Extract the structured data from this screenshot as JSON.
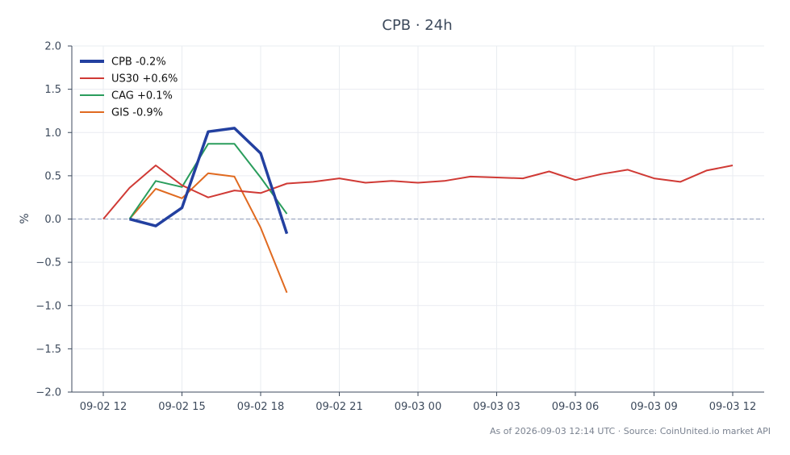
{
  "chart_data": {
    "type": "line",
    "title": "CPB · 24h",
    "xlabel": "",
    "ylabel": "%",
    "ylim": [
      -2.0,
      2.0
    ],
    "y_ticks": [
      "2.0",
      "1.5",
      "1.0",
      "0.5",
      "0.0",
      "−0.5",
      "−1.0",
      "−1.5",
      "−2.0"
    ],
    "x_ticks": [
      "09-02 12",
      "09-02 15",
      "09-02 18",
      "09-02 21",
      "09-03 00",
      "09-03 03",
      "09-03 06",
      "09-03 09",
      "09-03 12"
    ],
    "x_tick_hours": [
      0,
      3,
      6,
      9,
      12,
      15,
      18,
      21,
      24
    ],
    "grid": true,
    "zero_line": true,
    "legend_position": "top-left",
    "series": [
      {
        "name": "CPB -0.2%",
        "color": "#2340a0",
        "width": "thick",
        "x_hours": [
          1,
          2,
          3,
          4,
          5,
          6,
          7
        ],
        "values": [
          0.0,
          -0.08,
          0.13,
          1.01,
          1.05,
          0.76,
          -0.17
        ]
      },
      {
        "name": "US30 +0.6%",
        "color": "#d03a35",
        "width": "normal",
        "x_hours": [
          0,
          1,
          2,
          3,
          4,
          5,
          6,
          7,
          8,
          9,
          10,
          11,
          12,
          13,
          14,
          15,
          16,
          17,
          18,
          19,
          20,
          21,
          22,
          23,
          24
        ],
        "values": [
          0.0,
          0.36,
          0.62,
          0.39,
          0.25,
          0.33,
          0.3,
          0.41,
          0.43,
          0.47,
          0.42,
          0.44,
          0.42,
          0.44,
          0.49,
          0.48,
          0.47,
          0.55,
          0.45,
          0.52,
          0.57,
          0.47,
          0.43,
          0.56,
          0.62
        ]
      },
      {
        "name": "CAG +0.1%",
        "color": "#2a9d5c",
        "width": "normal",
        "x_hours": [
          1,
          2,
          3,
          4,
          5,
          6,
          7
        ],
        "values": [
          0.0,
          0.44,
          0.37,
          0.87,
          0.87,
          0.48,
          0.06
        ]
      },
      {
        "name": "GIS -0.9%",
        "color": "#e06a20",
        "width": "normal",
        "x_hours": [
          1,
          2,
          3,
          4,
          5,
          6,
          7
        ],
        "values": [
          0.0,
          0.35,
          0.24,
          0.53,
          0.49,
          -0.1,
          -0.85
        ]
      }
    ],
    "footer": "As of 2026-09-03 12:14 UTC · Source: CoinUnited.io market API"
  }
}
